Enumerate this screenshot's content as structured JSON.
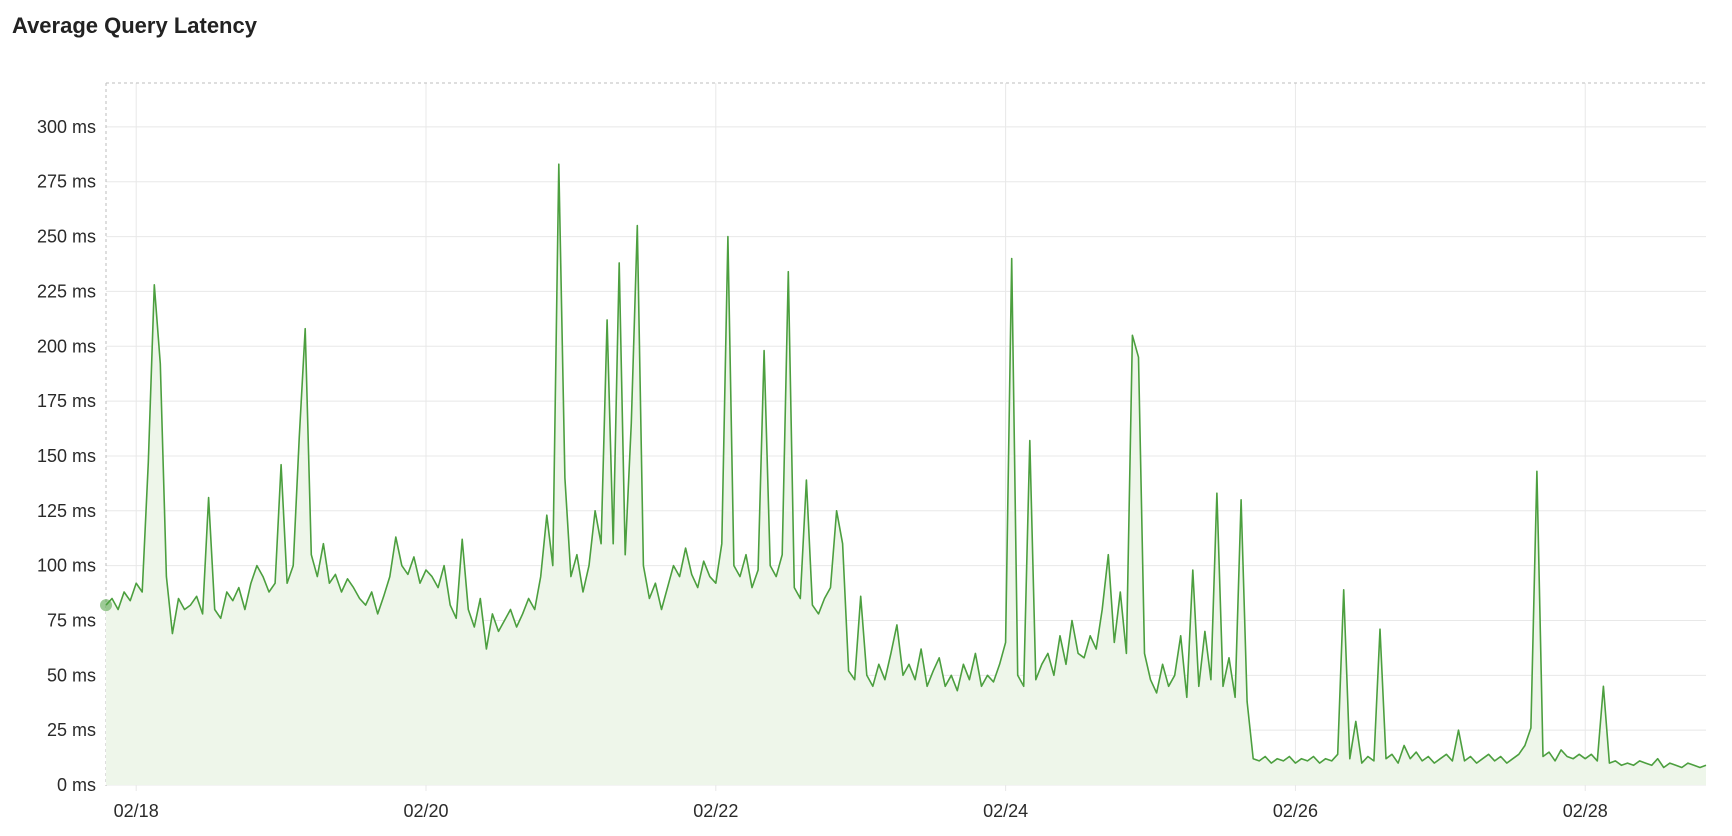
{
  "chart_data": {
    "type": "area",
    "title": "Average Query Latency",
    "xlabel": "",
    "ylabel": "",
    "y_unit": "ms",
    "ylim": [
      0,
      320
    ],
    "xlim": [
      "02/17 19:00",
      "02/28 20:00"
    ],
    "y_ticks": [
      "0 ms",
      "25 ms",
      "50 ms",
      "75 ms",
      "100 ms",
      "125 ms",
      "150 ms",
      "175 ms",
      "200 ms",
      "225 ms",
      "250 ms",
      "275 ms",
      "300 ms"
    ],
    "x_ticks": [
      "02/18",
      "02/20",
      "02/22",
      "02/24",
      "02/26",
      "02/28"
    ],
    "grid": true,
    "legend": "none",
    "colors": {
      "line": "#4c9f3f",
      "fill": "#eef6ea",
      "grid": "#e8e8e8"
    },
    "series": [
      {
        "interval": "1h",
        "days": [
          {
            "date": "02/17",
            "start": "19:00",
            "values": [
              82,
              85,
              80,
              88,
              84
            ]
          },
          {
            "date": "02/18",
            "start": "00:00",
            "values": [
              92,
              88,
              147,
              228,
              192,
              95,
              69,
              85,
              80,
              82,
              86,
              78,
              131,
              80,
              76,
              88,
              84,
              90,
              80,
              92,
              100,
              95,
              88,
              92
            ]
          },
          {
            "date": "02/19",
            "start": "00:00",
            "values": [
              146,
              92,
              100,
              158,
              208,
              105,
              95,
              110,
              92,
              96,
              88,
              94,
              90,
              85,
              82,
              88,
              78,
              86,
              95,
              113,
              100,
              96,
              104,
              92
            ]
          },
          {
            "date": "02/20",
            "start": "00:00",
            "values": [
              98,
              95,
              90,
              100,
              82,
              76,
              112,
              80,
              72,
              85,
              62,
              78,
              70,
              75,
              80,
              72,
              78,
              85,
              80,
              95,
              123,
              100,
              283,
              140
            ]
          },
          {
            "date": "02/21",
            "start": "00:00",
            "values": [
              95,
              105,
              88,
              100,
              125,
              110,
              212,
              110,
              238,
              105,
              165,
              255,
              100,
              85,
              92,
              80,
              90,
              100,
              95,
              108,
              96,
              90,
              102,
              95
            ]
          },
          {
            "date": "02/22",
            "start": "00:00",
            "values": [
              92,
              110,
              250,
              100,
              95,
              105,
              90,
              98,
              198,
              100,
              95,
              105,
              234,
              90,
              85,
              139,
              82,
              78,
              85,
              90,
              125,
              110,
              52,
              48
            ]
          },
          {
            "date": "02/23",
            "start": "00:00",
            "values": [
              86,
              50,
              45,
              55,
              48,
              60,
              73,
              50,
              55,
              48,
              62,
              45,
              52,
              58,
              45,
              50,
              43,
              55,
              48,
              60,
              45,
              50,
              47,
              55
            ]
          },
          {
            "date": "02/24",
            "start": "00:00",
            "values": [
              65,
              240,
              50,
              45,
              157,
              48,
              55,
              60,
              50,
              68,
              55,
              75,
              60,
              58,
              68,
              62,
              80,
              105,
              65,
              88,
              60,
              205,
              195,
              60
            ]
          },
          {
            "date": "02/25",
            "start": "00:00",
            "values": [
              48,
              42,
              55,
              45,
              50,
              68,
              40,
              98,
              45,
              70,
              48,
              133,
              45,
              58,
              40,
              130,
              38,
              12,
              11,
              13,
              10,
              12,
              11,
              13
            ]
          },
          {
            "date": "02/26",
            "start": "00:00",
            "values": [
              10,
              12,
              11,
              13,
              10,
              12,
              11,
              14,
              89,
              12,
              29,
              10,
              13,
              11,
              71,
              12,
              14,
              10,
              18,
              12,
              15,
              11,
              13,
              10
            ]
          },
          {
            "date": "02/27",
            "start": "00:00",
            "values": [
              12,
              14,
              11,
              25,
              11,
              13,
              10,
              12,
              14,
              11,
              13,
              10,
              12,
              14,
              18,
              26,
              143,
              13,
              15,
              11,
              16,
              13,
              12,
              14
            ]
          },
          {
            "date": "02/28",
            "start": "00:00",
            "values": [
              12,
              14,
              11,
              45,
              10,
              11,
              9,
              10,
              9,
              11,
              10,
              9,
              12,
              8,
              10,
              9,
              8,
              10,
              9,
              8,
              9
            ]
          }
        ]
      }
    ]
  }
}
